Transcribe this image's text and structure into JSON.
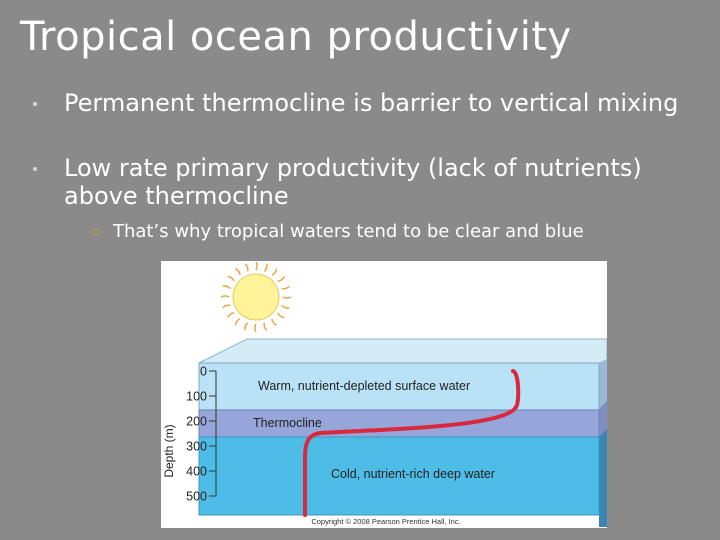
{
  "slide": {
    "title": "Tropical ocean productivity",
    "bullets": [
      "Permanent thermocline is barrier to vertical mixing",
      "Low rate primary productivity (lack of nutrients) above thermocline"
    ],
    "sub_bullet": "That’s why tropical waters tend to be clear and blue"
  },
  "figure": {
    "axis_label": "Depth (m)",
    "depth_ticks": [
      "0",
      "100",
      "200",
      "300",
      "400",
      "500"
    ],
    "layers": {
      "surface": "Warm, nutrient-depleted surface water",
      "thermocline": "Thermocline",
      "deep": "Cold, nutrient-rich deep water"
    },
    "copyright": "Copyright © 2008 Pearson Prentice Hall, Inc.",
    "colors": {
      "slide_background": "#8a8a8a",
      "sky": "#d4ecf6",
      "surface_layer": "#b9e2f6",
      "thermocline_layer": "#97a6da",
      "deep_layer": "#4dbce6",
      "temperature_line": "#d8283c",
      "sun": "#fff49a"
    }
  }
}
